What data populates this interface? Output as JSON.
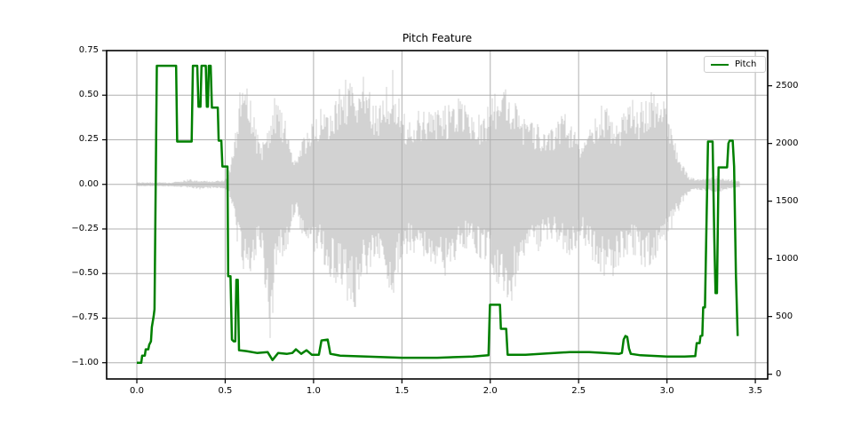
{
  "chart_data": {
    "type": "line",
    "title": "Pitch Feature",
    "grid": true,
    "legend": {
      "label": "Pitch",
      "position": "upper right"
    },
    "colors": {
      "pitch": "#008000",
      "waveform": "#d2d2d2",
      "grid": "#b0b0b0",
      "spine": "#000000"
    },
    "x_axis": {
      "lim": [
        -0.171,
        3.57
      ],
      "ticks": [
        0.0,
        0.5,
        1.0,
        1.5,
        2.0,
        2.5,
        3.0,
        3.5
      ],
      "tick_labels": [
        "0.0",
        "0.5",
        "1.0",
        "1.5",
        "2.0",
        "2.5",
        "3.0",
        "3.5"
      ]
    },
    "y_axis_left": {
      "lim": [
        -1.091,
        0.75
      ],
      "ticks": [
        0.75,
        0.5,
        0.25,
        0.0,
        -0.25,
        -0.5,
        -0.75,
        -1.0
      ],
      "tick_labels": [
        "0.75",
        "0.50",
        "0.25",
        "0.00",
        "−0.25",
        "−0.50",
        "−0.75",
        "−1.00"
      ]
    },
    "y_axis_right": {
      "lim": [
        -41,
        2805
      ],
      "ticks": [
        0,
        500,
        1000,
        1500,
        2000,
        2500
      ],
      "tick_labels": [
        "0",
        "500",
        "1000",
        "1500",
        "2000",
        "2500"
      ]
    },
    "series": [
      {
        "name": "Pitch",
        "type": "line",
        "axis": "left",
        "color": "#008000",
        "line_width": 2.5,
        "points": [
          [
            0.0,
            -1.0
          ],
          [
            0.025,
            -1.0
          ],
          [
            0.03,
            -0.96
          ],
          [
            0.045,
            -0.96
          ],
          [
            0.05,
            -0.925
          ],
          [
            0.065,
            -0.925
          ],
          [
            0.07,
            -0.9
          ],
          [
            0.08,
            -0.88
          ],
          [
            0.085,
            -0.8
          ],
          [
            0.095,
            -0.74
          ],
          [
            0.1,
            -0.7
          ],
          [
            0.113,
            0.665
          ],
          [
            0.222,
            0.665
          ],
          [
            0.228,
            0.24
          ],
          [
            0.31,
            0.24
          ],
          [
            0.317,
            0.665
          ],
          [
            0.342,
            0.665
          ],
          [
            0.349,
            0.435
          ],
          [
            0.36,
            0.435
          ],
          [
            0.366,
            0.665
          ],
          [
            0.39,
            0.665
          ],
          [
            0.396,
            0.435
          ],
          [
            0.402,
            0.435
          ],
          [
            0.407,
            0.665
          ],
          [
            0.418,
            0.665
          ],
          [
            0.425,
            0.43
          ],
          [
            0.458,
            0.43
          ],
          [
            0.463,
            0.245
          ],
          [
            0.478,
            0.245
          ],
          [
            0.484,
            0.1
          ],
          [
            0.513,
            0.1
          ],
          [
            0.517,
            -0.515
          ],
          [
            0.53,
            -0.515
          ],
          [
            0.538,
            -0.87
          ],
          [
            0.548,
            -0.88
          ],
          [
            0.557,
            -0.88
          ],
          [
            0.563,
            -0.535
          ],
          [
            0.571,
            -0.535
          ],
          [
            0.578,
            -0.93
          ],
          [
            0.62,
            -0.935
          ],
          [
            0.68,
            -0.945
          ],
          [
            0.74,
            -0.94
          ],
          [
            0.768,
            -0.985
          ],
          [
            0.8,
            -0.945
          ],
          [
            0.85,
            -0.95
          ],
          [
            0.88,
            -0.945
          ],
          [
            0.9,
            -0.925
          ],
          [
            0.93,
            -0.95
          ],
          [
            0.96,
            -0.93
          ],
          [
            0.99,
            -0.955
          ],
          [
            1.03,
            -0.955
          ],
          [
            1.045,
            -0.875
          ],
          [
            1.08,
            -0.87
          ],
          [
            1.095,
            -0.95
          ],
          [
            1.15,
            -0.96
          ],
          [
            1.3,
            -0.965
          ],
          [
            1.5,
            -0.972
          ],
          [
            1.7,
            -0.972
          ],
          [
            1.9,
            -0.965
          ],
          [
            1.99,
            -0.958
          ],
          [
            1.998,
            -0.675
          ],
          [
            2.055,
            -0.675
          ],
          [
            2.06,
            -0.81
          ],
          [
            2.09,
            -0.81
          ],
          [
            2.098,
            -0.955
          ],
          [
            2.2,
            -0.955
          ],
          [
            2.32,
            -0.948
          ],
          [
            2.45,
            -0.94
          ],
          [
            2.56,
            -0.94
          ],
          [
            2.65,
            -0.945
          ],
          [
            2.73,
            -0.95
          ],
          [
            2.745,
            -0.945
          ],
          [
            2.755,
            -0.87
          ],
          [
            2.765,
            -0.85
          ],
          [
            2.775,
            -0.855
          ],
          [
            2.785,
            -0.92
          ],
          [
            2.795,
            -0.95
          ],
          [
            2.85,
            -0.958
          ],
          [
            3.0,
            -0.965
          ],
          [
            3.1,
            -0.965
          ],
          [
            3.16,
            -0.963
          ],
          [
            3.168,
            -0.89
          ],
          [
            3.185,
            -0.89
          ],
          [
            3.19,
            -0.85
          ],
          [
            3.2,
            -0.848
          ],
          [
            3.205,
            -0.69
          ],
          [
            3.215,
            -0.69
          ],
          [
            3.232,
            0.24
          ],
          [
            3.258,
            0.24
          ],
          [
            3.268,
            -0.3
          ],
          [
            3.275,
            -0.61
          ],
          [
            3.283,
            -0.61
          ],
          [
            3.292,
            0.095
          ],
          [
            3.34,
            0.095
          ],
          [
            3.348,
            0.23
          ],
          [
            3.355,
            0.245
          ],
          [
            3.372,
            0.245
          ],
          [
            3.38,
            0.1
          ],
          [
            3.39,
            -0.5
          ],
          [
            3.4,
            -0.85
          ]
        ]
      },
      {
        "name": "waveform",
        "type": "waveform-envelope",
        "axis": "left",
        "color": "#d2d2d2",
        "envelope": [
          [
            0.0,
            0.012,
            -0.012
          ],
          [
            0.2,
            0.012,
            -0.012
          ],
          [
            0.3,
            0.03,
            -0.02
          ],
          [
            0.36,
            0.02,
            -0.03
          ],
          [
            0.44,
            0.02,
            -0.02
          ],
          [
            0.5,
            0.025,
            -0.025
          ],
          [
            0.53,
            0.1,
            -0.08
          ],
          [
            0.56,
            0.32,
            -0.28
          ],
          [
            0.58,
            0.5,
            -0.4
          ],
          [
            0.6,
            0.63,
            -0.48
          ],
          [
            0.62,
            0.55,
            -0.58
          ],
          [
            0.64,
            0.48,
            -0.52
          ],
          [
            0.66,
            0.42,
            -0.45
          ],
          [
            0.68,
            0.3,
            -0.38
          ],
          [
            0.7,
            0.22,
            -0.4
          ],
          [
            0.72,
            0.28,
            -0.55
          ],
          [
            0.74,
            0.32,
            -0.75
          ],
          [
            0.76,
            0.4,
            -0.95
          ],
          [
            0.78,
            0.52,
            -0.55
          ],
          [
            0.8,
            0.45,
            -0.38
          ],
          [
            0.82,
            0.42,
            -0.42
          ],
          [
            0.84,
            0.38,
            -0.45
          ],
          [
            0.86,
            0.28,
            -0.3
          ],
          [
            0.88,
            0.16,
            -0.2
          ],
          [
            0.9,
            0.13,
            -0.16
          ],
          [
            0.92,
            0.22,
            -0.24
          ],
          [
            0.94,
            0.28,
            -0.3
          ],
          [
            0.96,
            0.3,
            -0.33
          ],
          [
            0.98,
            0.34,
            -0.36
          ],
          [
            1.0,
            0.38,
            -0.4
          ],
          [
            1.03,
            0.44,
            -0.38
          ],
          [
            1.06,
            0.4,
            -0.46
          ],
          [
            1.09,
            0.45,
            -0.52
          ],
          [
            1.12,
            0.52,
            -0.56
          ],
          [
            1.15,
            0.56,
            -0.6
          ],
          [
            1.18,
            0.6,
            -0.64
          ],
          [
            1.21,
            0.64,
            -0.68
          ],
          [
            1.24,
            0.58,
            -0.72
          ],
          [
            1.27,
            0.66,
            -0.58
          ],
          [
            1.3,
            0.56,
            -0.52
          ],
          [
            1.33,
            0.52,
            -0.48
          ],
          [
            1.36,
            0.48,
            -0.46
          ],
          [
            1.39,
            0.5,
            -0.52
          ],
          [
            1.42,
            0.58,
            -0.62
          ],
          [
            1.45,
            0.66,
            -0.7
          ],
          [
            1.48,
            0.52,
            -0.5
          ],
          [
            1.51,
            0.42,
            -0.42
          ],
          [
            1.54,
            0.36,
            -0.38
          ],
          [
            1.58,
            0.4,
            -0.4
          ],
          [
            1.62,
            0.44,
            -0.42
          ],
          [
            1.66,
            0.4,
            -0.44
          ],
          [
            1.7,
            0.42,
            -0.48
          ],
          [
            1.74,
            0.44,
            -0.52
          ],
          [
            1.78,
            0.48,
            -0.46
          ],
          [
            1.82,
            0.52,
            -0.4
          ],
          [
            1.86,
            0.44,
            -0.36
          ],
          [
            1.9,
            0.38,
            -0.38
          ],
          [
            1.94,
            0.4,
            -0.42
          ],
          [
            1.98,
            0.43,
            -0.46
          ],
          [
            2.02,
            0.5,
            -0.52
          ],
          [
            2.05,
            0.58,
            -0.6
          ],
          [
            2.08,
            0.63,
            -0.66
          ],
          [
            2.11,
            0.58,
            -0.7
          ],
          [
            2.14,
            0.5,
            -0.58
          ],
          [
            2.17,
            0.42,
            -0.48
          ],
          [
            2.2,
            0.38,
            -0.42
          ],
          [
            2.24,
            0.36,
            -0.4
          ],
          [
            2.28,
            0.33,
            -0.37
          ],
          [
            2.32,
            0.3,
            -0.34
          ],
          [
            2.36,
            0.34,
            -0.3
          ],
          [
            2.4,
            0.42,
            -0.38
          ],
          [
            2.44,
            0.38,
            -0.44
          ],
          [
            2.48,
            0.3,
            -0.38
          ],
          [
            2.52,
            0.24,
            -0.3
          ],
          [
            2.56,
            0.32,
            -0.4
          ],
          [
            2.6,
            0.4,
            -0.46
          ],
          [
            2.64,
            0.46,
            -0.52
          ],
          [
            2.68,
            0.4,
            -0.56
          ],
          [
            2.72,
            0.34,
            -0.48
          ],
          [
            2.76,
            0.42,
            -0.42
          ],
          [
            2.8,
            0.48,
            -0.38
          ],
          [
            2.84,
            0.44,
            -0.44
          ],
          [
            2.88,
            0.52,
            -0.5
          ],
          [
            2.92,
            0.58,
            -0.46
          ],
          [
            2.96,
            0.52,
            -0.4
          ],
          [
            3.0,
            0.42,
            -0.32
          ],
          [
            3.04,
            0.28,
            -0.22
          ],
          [
            3.08,
            0.14,
            -0.12
          ],
          [
            3.12,
            0.05,
            -0.05
          ],
          [
            3.16,
            0.03,
            -0.03
          ],
          [
            3.22,
            0.04,
            -0.04
          ],
          [
            3.28,
            0.05,
            -0.05
          ],
          [
            3.34,
            0.03,
            -0.03
          ],
          [
            3.41,
            0.02,
            -0.02
          ]
        ]
      }
    ]
  }
}
